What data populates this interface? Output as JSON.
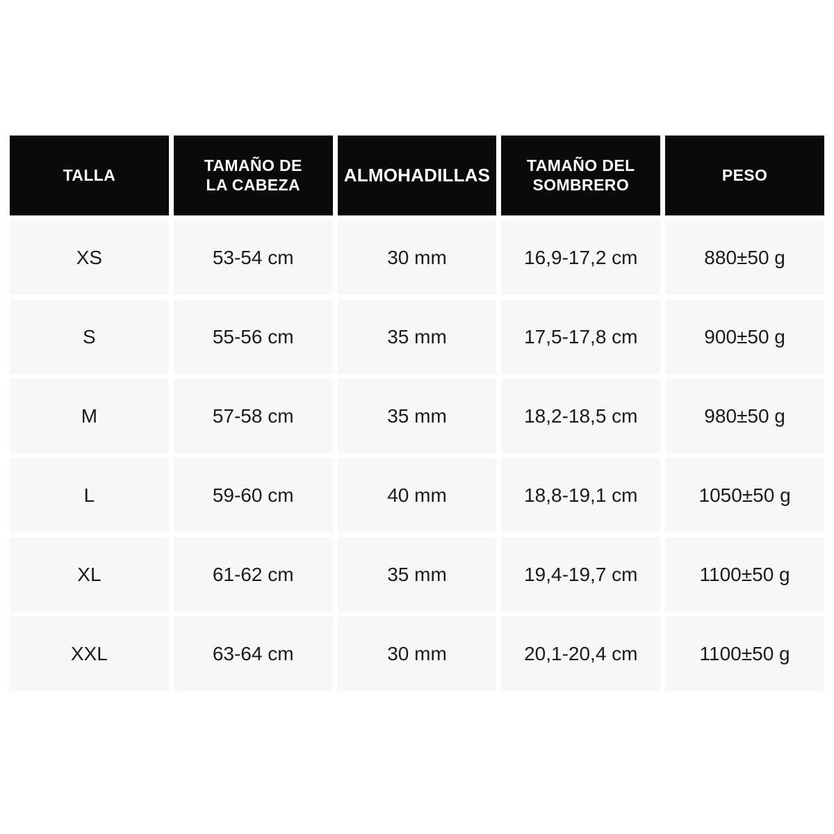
{
  "table": {
    "columns": [
      {
        "key": "talla",
        "label": "TALLA"
      },
      {
        "key": "cabeza",
        "label": "TAMAÑO DE\nLA CABEZA"
      },
      {
        "key": "almohadillas",
        "label": "ALMOHADILLAS"
      },
      {
        "key": "sombrero",
        "label": "TAMAÑO DEL\nSOMBRERO"
      },
      {
        "key": "peso",
        "label": "PESO"
      }
    ],
    "rows": [
      {
        "talla": "XS",
        "cabeza": "53-54 cm",
        "almohadillas": "30 mm",
        "sombrero": "16,9-17,2 cm",
        "peso": "880±50 g"
      },
      {
        "talla": "S",
        "cabeza": "55-56 cm",
        "almohadillas": "35 mm",
        "sombrero": "17,5-17,8 cm",
        "peso": "900±50 g"
      },
      {
        "talla": "M",
        "cabeza": "57-58 cm",
        "almohadillas": "35 mm",
        "sombrero": "18,2-18,5 cm",
        "peso": "980±50 g"
      },
      {
        "talla": "L",
        "cabeza": "59-60 cm",
        "almohadillas": "40 mm",
        "sombrero": "18,8-19,1 cm",
        "peso": "1050±50 g"
      },
      {
        "talla": "XL",
        "cabeza": "61-62 cm",
        "almohadillas": "35 mm",
        "sombrero": "19,4-19,7 cm",
        "peso": "1100±50 g"
      },
      {
        "talla": "XXL",
        "cabeza": "63-64 cm",
        "almohadillas": "30 mm",
        "sombrero": "20,1-20,4 cm",
        "peso": "1100±50 g"
      }
    ]
  },
  "colors": {
    "page_bg": "#ffffff",
    "header_bg": "#0a0a0a",
    "header_text": "#ffffff",
    "cell_bg": "#f7f7f7",
    "cell_text": "#1b1b1b"
  }
}
